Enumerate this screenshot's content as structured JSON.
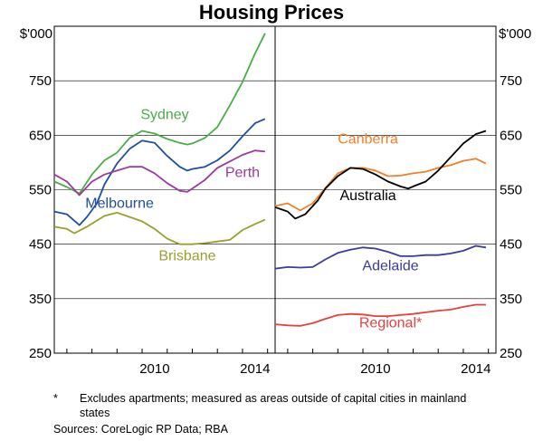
{
  "chart_data": {
    "type": "line",
    "title": "Housing Prices",
    "unit_label": "$'000",
    "ylim": [
      250,
      850
    ],
    "yticks": [
      250,
      350,
      450,
      550,
      650,
      750
    ],
    "xlim": [
      2006.5,
      2015.3
    ],
    "xticks": [
      2010,
      2014
    ],
    "panels": [
      {
        "name": "left",
        "series": [
          {
            "name": "Sydney",
            "color": "#4aae48",
            "points": [
              [
                2006.5,
                565
              ],
              [
                2007.0,
                555
              ],
              [
                2007.5,
                543
              ],
              [
                2008.0,
                578
              ],
              [
                2008.5,
                604
              ],
              [
                2009.0,
                618
              ],
              [
                2009.5,
                645
              ],
              [
                2010.0,
                658
              ],
              [
                2010.5,
                653
              ],
              [
                2011.0,
                643
              ],
              [
                2011.5,
                636
              ],
              [
                2011.8,
                633
              ],
              [
                2012.0,
                635
              ],
              [
                2012.5,
                645
              ],
              [
                2013.0,
                665
              ],
              [
                2013.5,
                705
              ],
              [
                2014.0,
                748
              ],
              [
                2014.5,
                800
              ],
              [
                2014.9,
                837
              ]
            ]
          },
          {
            "name": "Melbourne",
            "color": "#1f4fa0",
            "points": [
              [
                2006.5,
                510
              ],
              [
                2007.0,
                505
              ],
              [
                2007.5,
                485
              ],
              [
                2007.8,
                500
              ],
              [
                2008.2,
                525
              ],
              [
                2008.5,
                560
              ],
              [
                2009.0,
                598
              ],
              [
                2009.5,
                625
              ],
              [
                2010.0,
                640
              ],
              [
                2010.5,
                636
              ],
              [
                2011.0,
                612
              ],
              [
                2011.5,
                592
              ],
              [
                2011.8,
                585
              ],
              [
                2012.0,
                588
              ],
              [
                2012.5,
                592
              ],
              [
                2013.0,
                604
              ],
              [
                2013.5,
                622
              ],
              [
                2014.0,
                648
              ],
              [
                2014.5,
                672
              ],
              [
                2014.9,
                680
              ]
            ]
          },
          {
            "name": "Perth",
            "color": "#9b3b9c",
            "points": [
              [
                2006.5,
                578
              ],
              [
                2007.0,
                565
              ],
              [
                2007.5,
                540
              ],
              [
                2008.0,
                565
              ],
              [
                2008.5,
                578
              ],
              [
                2009.0,
                585
              ],
              [
                2009.5,
                592
              ],
              [
                2010.0,
                592
              ],
              [
                2010.5,
                580
              ],
              [
                2011.0,
                562
              ],
              [
                2011.5,
                548
              ],
              [
                2011.8,
                546
              ],
              [
                2012.0,
                552
              ],
              [
                2012.5,
                568
              ],
              [
                2013.0,
                590
              ],
              [
                2013.5,
                602
              ],
              [
                2014.0,
                614
              ],
              [
                2014.5,
                622
              ],
              [
                2014.9,
                620
              ]
            ]
          },
          {
            "name": "Brisbane",
            "color": "#99a12a",
            "points": [
              [
                2006.5,
                482
              ],
              [
                2007.0,
                478
              ],
              [
                2007.3,
                470
              ],
              [
                2007.8,
                482
              ],
              [
                2008.5,
                502
              ],
              [
                2009.0,
                508
              ],
              [
                2009.5,
                500
              ],
              [
                2010.0,
                492
              ],
              [
                2010.5,
                478
              ],
              [
                2011.0,
                460
              ],
              [
                2011.5,
                450
              ],
              [
                2012.0,
                450
              ],
              [
                2012.5,
                452
              ],
              [
                2013.0,
                455
              ],
              [
                2013.5,
                458
              ],
              [
                2014.0,
                476
              ],
              [
                2014.5,
                487
              ],
              [
                2014.9,
                495
              ]
            ]
          }
        ],
        "labels": [
          {
            "text": "Sydney",
            "series": "Sydney",
            "x": 2010.9,
            "y": 680
          },
          {
            "text": "Melbourne",
            "series": "Melbourne",
            "x": 2009.1,
            "y": 517
          },
          {
            "text": "Perth",
            "series": "Perth",
            "x": 2014.0,
            "y": 573
          },
          {
            "text": "Brisbane",
            "series": "Brisbane",
            "x": 2011.8,
            "y": 420
          }
        ]
      },
      {
        "name": "right",
        "series": [
          {
            "name": "Canberra",
            "color": "#f07f2a",
            "points": [
              [
                2006.5,
                520
              ],
              [
                2007.0,
                525
              ],
              [
                2007.5,
                512
              ],
              [
                2008.0,
                525
              ],
              [
                2008.5,
                553
              ],
              [
                2009.0,
                580
              ],
              [
                2009.5,
                590
              ],
              [
                2010.0,
                590
              ],
              [
                2010.5,
                585
              ],
              [
                2011.0,
                575
              ],
              [
                2011.5,
                576
              ],
              [
                2012.0,
                580
              ],
              [
                2012.5,
                583
              ],
              [
                2013.0,
                590
              ],
              [
                2013.5,
                595
              ],
              [
                2014.0,
                603
              ],
              [
                2014.5,
                607
              ],
              [
                2014.9,
                598
              ]
            ]
          },
          {
            "name": "Australia",
            "color": "#000000",
            "points": [
              [
                2006.5,
                518
              ],
              [
                2007.0,
                510
              ],
              [
                2007.3,
                497
              ],
              [
                2007.7,
                505
              ],
              [
                2008.2,
                530
              ],
              [
                2008.5,
                552
              ],
              [
                2009.0,
                575
              ],
              [
                2009.5,
                590
              ],
              [
                2010.0,
                588
              ],
              [
                2010.5,
                578
              ],
              [
                2011.0,
                565
              ],
              [
                2011.5,
                556
              ],
              [
                2011.8,
                552
              ],
              [
                2012.0,
                556
              ],
              [
                2012.5,
                565
              ],
              [
                2013.0,
                585
              ],
              [
                2013.5,
                610
              ],
              [
                2014.0,
                635
              ],
              [
                2014.5,
                652
              ],
              [
                2014.9,
                658
              ]
            ]
          },
          {
            "name": "Adelaide",
            "color": "#3a3d99",
            "points": [
              [
                2006.5,
                405
              ],
              [
                2007.0,
                408
              ],
              [
                2007.5,
                407
              ],
              [
                2008.0,
                408
              ],
              [
                2008.5,
                422
              ],
              [
                2009.0,
                434
              ],
              [
                2009.5,
                440
              ],
              [
                2010.0,
                444
              ],
              [
                2010.5,
                442
              ],
              [
                2011.0,
                436
              ],
              [
                2011.5,
                428
              ],
              [
                2012.0,
                428
              ],
              [
                2012.5,
                430
              ],
              [
                2013.0,
                430
              ],
              [
                2013.5,
                433
              ],
              [
                2014.0,
                438
              ],
              [
                2014.5,
                447
              ],
              [
                2014.9,
                444
              ]
            ]
          },
          {
            "name": "Regional*",
            "color": "#e8403d",
            "points": [
              [
                2006.5,
                303
              ],
              [
                2007.0,
                301
              ],
              [
                2007.5,
                300
              ],
              [
                2008.0,
                305
              ],
              [
                2008.5,
                313
              ],
              [
                2009.0,
                320
              ],
              [
                2009.5,
                322
              ],
              [
                2010.0,
                321
              ],
              [
                2010.5,
                318
              ],
              [
                2011.0,
                318
              ],
              [
                2011.5,
                320
              ],
              [
                2012.0,
                322
              ],
              [
                2012.5,
                325
              ],
              [
                2013.0,
                328
              ],
              [
                2013.5,
                330
              ],
              [
                2014.0,
                335
              ],
              [
                2014.5,
                339
              ],
              [
                2014.9,
                339
              ]
            ]
          }
        ],
        "labels": [
          {
            "text": "Canberra",
            "series": "Canberra",
            "x": 2010.2,
            "y": 635
          },
          {
            "text": "Australia",
            "series": "Australia",
            "x": 2010.2,
            "y": 531
          },
          {
            "text": "Adelaide",
            "series": "Adelaide",
            "x": 2011.1,
            "y": 402
          },
          {
            "text": "Regional*",
            "series": "Regional*",
            "x": 2011.1,
            "y": 297
          }
        ]
      }
    ]
  },
  "footnotes": {
    "marker": "*",
    "text": "Excludes apartments; measured as areas outside of capital cities in mainland states",
    "sources": "Sources:   CoreLogic RP Data; RBA"
  }
}
